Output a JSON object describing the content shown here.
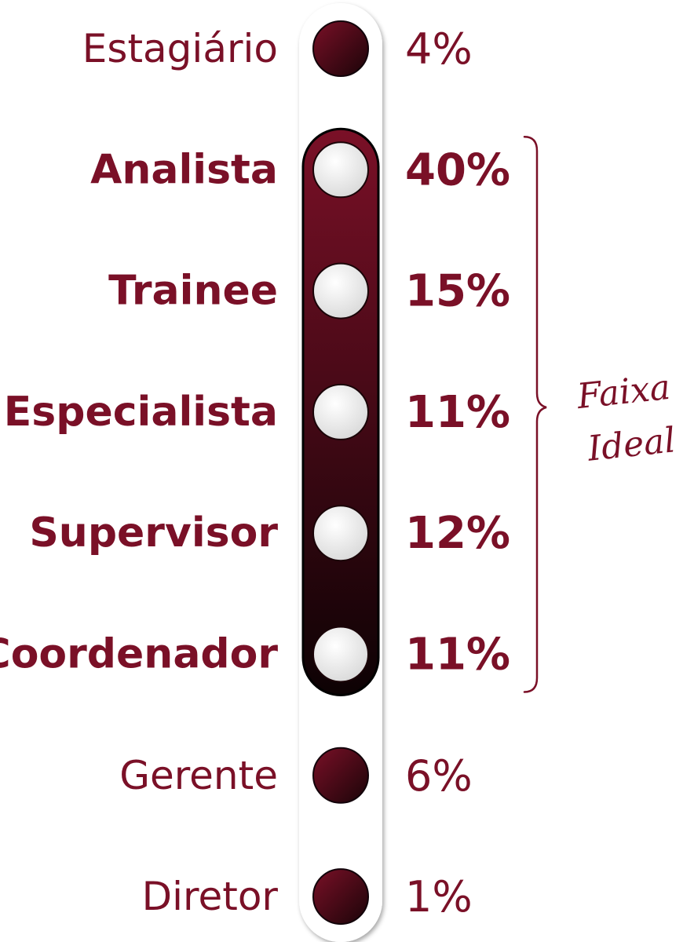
{
  "chart_data": {
    "type": "bar",
    "categories": [
      "Estagiário",
      "Analista",
      "Trainee",
      "Especialista",
      "Supervisor",
      "Coordenador",
      "Gerente",
      "Diretor"
    ],
    "values": [
      4,
      40,
      15,
      11,
      12,
      11,
      6,
      1
    ],
    "value_labels": [
      "4%",
      "40%",
      "15%",
      "11%",
      "12%",
      "11%",
      "6%",
      "1%"
    ],
    "highlighted": [
      false,
      true,
      true,
      true,
      true,
      true,
      false,
      false
    ],
    "bracket_label_lines": [
      "Faixa",
      "Ideal"
    ]
  },
  "colors": {
    "accent": "#7a1027",
    "dark": "#1a0408",
    "track": "#ffffff",
    "node_light": "#e8e8e8"
  }
}
